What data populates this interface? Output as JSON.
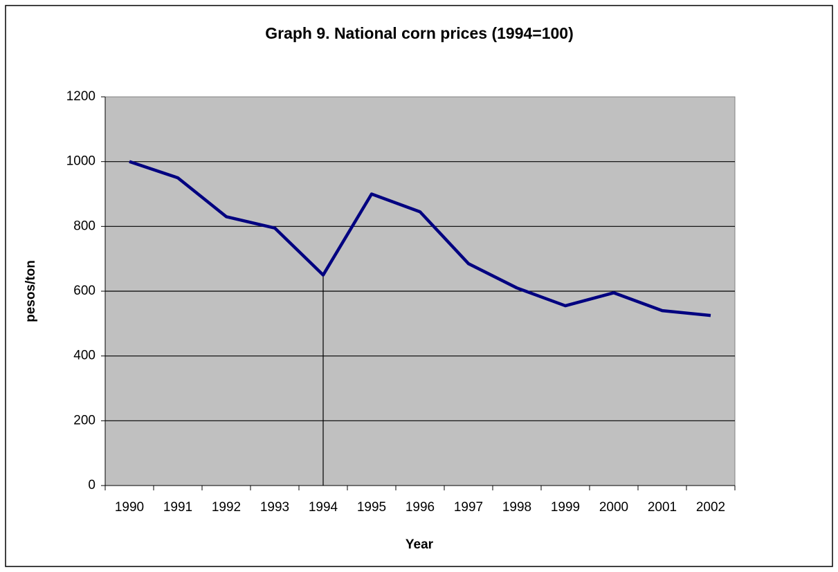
{
  "chart_data": {
    "type": "line",
    "title": "Graph 9. National corn prices (1994=100)",
    "x_label": "Year",
    "y_label": "pesos/ton",
    "categories": [
      "1990",
      "1991",
      "1992",
      "1993",
      "1994",
      "1995",
      "1996",
      "1997",
      "1998",
      "1999",
      "2000",
      "2001",
      "2002"
    ],
    "series": [
      {
        "name": "National corn prices",
        "color": "#000080",
        "values": [
          1000,
          950,
          830,
          795,
          650,
          900,
          845,
          685,
          610,
          555,
          595,
          540,
          525
        ]
      }
    ],
    "ylim": [
      0,
      1200
    ],
    "yticks": [
      0,
      200,
      400,
      600,
      800,
      1000,
      1200
    ],
    "grid": true,
    "drop_line_at": "1994"
  }
}
